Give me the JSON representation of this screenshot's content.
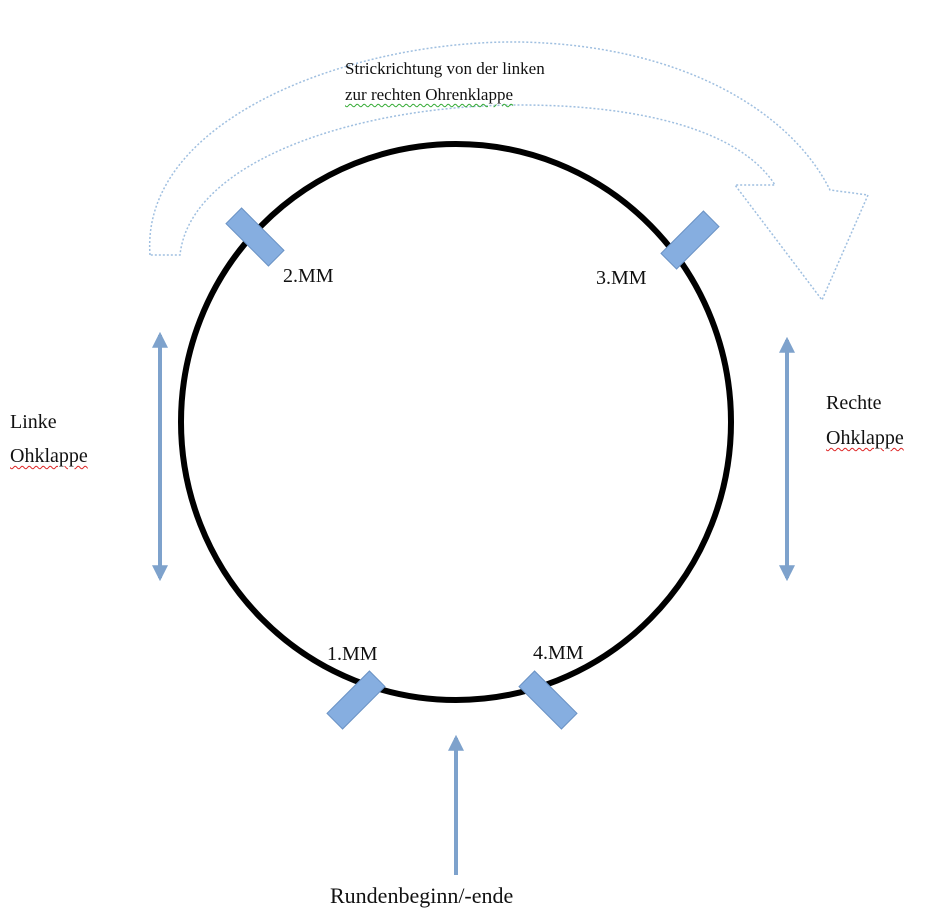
{
  "direction_label": {
    "line1": "Strickrichtung von der linken",
    "line2": "zur rechten Ohrenklappe"
  },
  "markers": [
    {
      "label": "1.MM"
    },
    {
      "label": "2.MM"
    },
    {
      "label": "3.MM"
    },
    {
      "label": "4.MM"
    }
  ],
  "left_label": {
    "line1": "Linke",
    "line2": "Ohklappe"
  },
  "right_label": {
    "line1": "Rechte",
    "line2": "Ohklappe"
  },
  "bottom_label": "Rundenbeginn/-ende"
}
